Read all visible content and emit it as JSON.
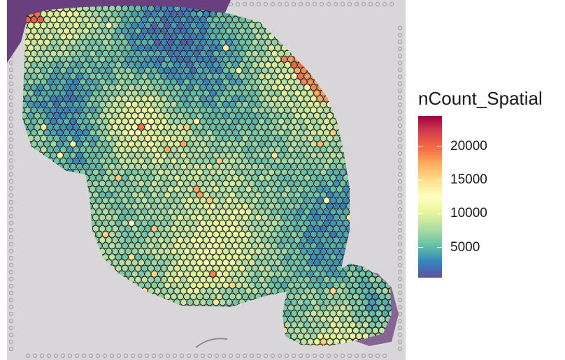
{
  "legend": {
    "title": "nCount_Spatial",
    "min": 500,
    "max": 24500,
    "ticks": [
      {
        "value": 20000,
        "label": "20000"
      },
      {
        "value": 15000,
        "label": "15000"
      },
      {
        "value": 10000,
        "label": "10000"
      },
      {
        "value": 5000,
        "label": "5000"
      }
    ],
    "colors": [
      "#5e4fa2",
      "#3288bd",
      "#66c2a5",
      "#abdda4",
      "#e6f598",
      "#ffffbf",
      "#fee08b",
      "#fdae61",
      "#f46d43",
      "#d53e4f",
      "#9e0142"
    ]
  },
  "image": {
    "background_color": "#d9d6da",
    "tissue_color": "#6a3f7d",
    "spot_outline_color": "#1a1a1a"
  }
}
